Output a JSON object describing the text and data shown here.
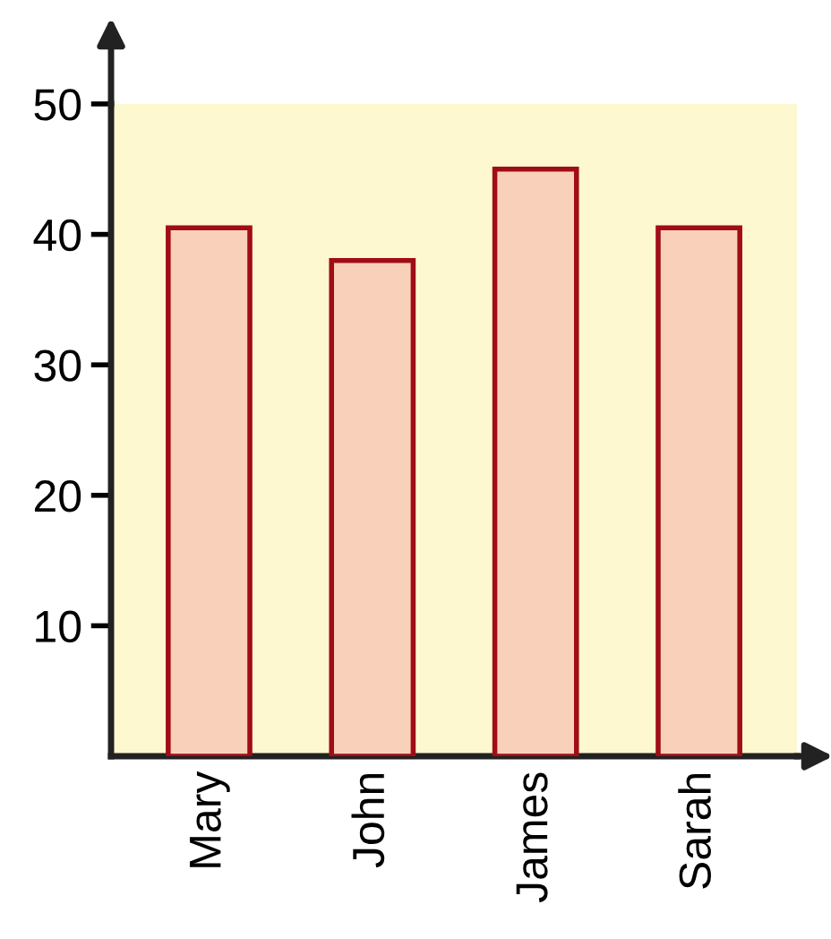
{
  "chart_data": {
    "type": "bar",
    "categories": [
      "Mary",
      "John",
      "James",
      "Sarah"
    ],
    "values": [
      40.5,
      38,
      45,
      40.5
    ],
    "color": "#f9d1ba",
    "ylim": [
      0,
      50
    ],
    "yticks": [
      10,
      20,
      30,
      40,
      50
    ],
    "grid": false
  }
}
